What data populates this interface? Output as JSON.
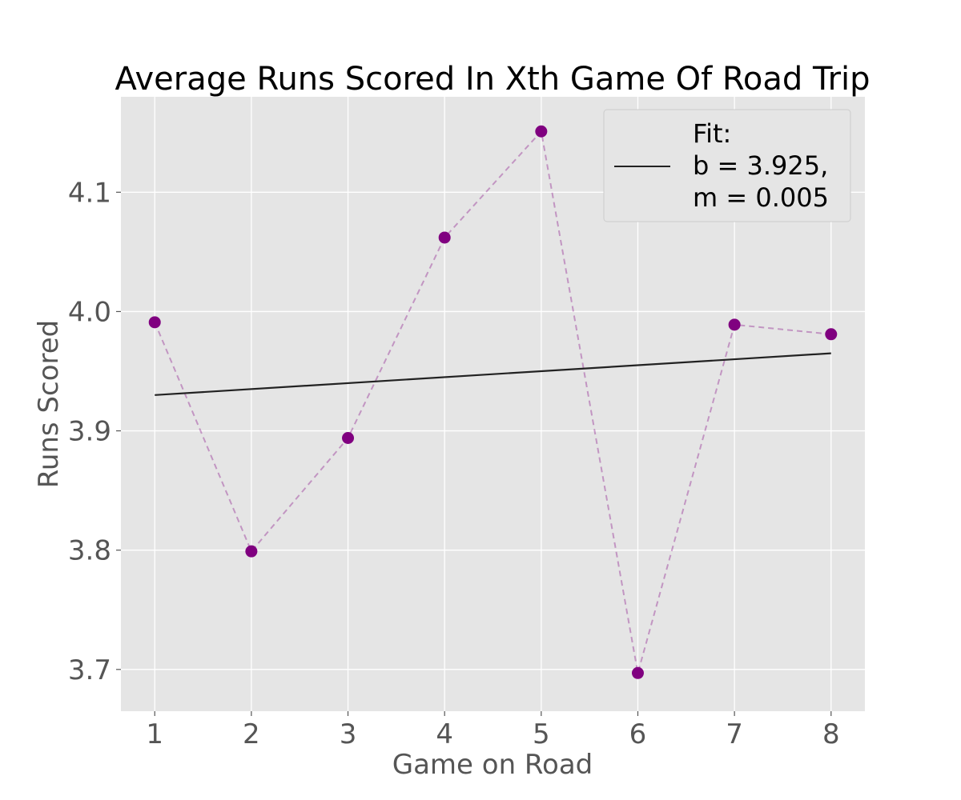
{
  "chart_data": {
    "type": "scatter",
    "title": "Average Runs Scored In Xth Game Of Road Trip",
    "xlabel": "Game on Road",
    "ylabel": "Runs Scored",
    "xlim": [
      0.65,
      8.35
    ],
    "ylim": [
      3.665,
      4.18
    ],
    "xticks": [
      1,
      2,
      3,
      4,
      5,
      6,
      7,
      8
    ],
    "xtick_labels": [
      "1",
      "2",
      "3",
      "4",
      "5",
      "6",
      "7",
      "8"
    ],
    "yticks": [
      3.7,
      3.8,
      3.9,
      4.0,
      4.1
    ],
    "ytick_labels": [
      "3.7",
      "3.8",
      "3.9",
      "4.0",
      "4.1"
    ],
    "grid": true,
    "legend_position": "top-right",
    "series": [
      {
        "kind": "points",
        "x": [
          1,
          2,
          3,
          4,
          5,
          6,
          7,
          8
        ],
        "y": [
          3.991,
          3.799,
          3.894,
          4.062,
          4.151,
          3.697,
          3.989,
          3.981
        ],
        "color": "#800080",
        "connector": "dashed"
      },
      {
        "kind": "fit",
        "name": "Fit:\nb = 3.925,\nm = 0.005",
        "intercept": 3.925,
        "slope": 0.005,
        "x": [
          1,
          8
        ],
        "color": "#222222"
      }
    ],
    "legend": {
      "lines": [
        "Fit:",
        "b = 3.925,",
        "m = 0.005"
      ]
    }
  }
}
